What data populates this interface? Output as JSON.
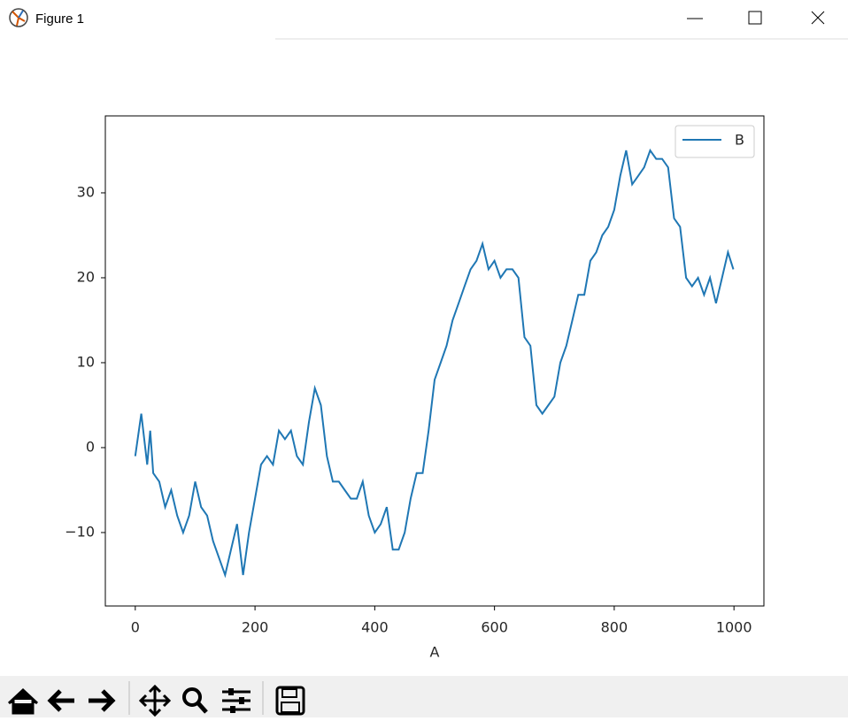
{
  "window": {
    "title": "Figure 1"
  },
  "chart_data": {
    "type": "line",
    "x_label": "A",
    "x": [
      0,
      10,
      20,
      25,
      30,
      40,
      50,
      60,
      70,
      80,
      90,
      100,
      110,
      120,
      130,
      140,
      150,
      160,
      170,
      180,
      190,
      200,
      210,
      220,
      230,
      240,
      250,
      260,
      270,
      280,
      290,
      300,
      310,
      320,
      330,
      340,
      350,
      360,
      370,
      380,
      390,
      400,
      410,
      420,
      430,
      440,
      450,
      460,
      470,
      480,
      490,
      500,
      510,
      520,
      530,
      540,
      550,
      560,
      570,
      580,
      590,
      600,
      610,
      620,
      630,
      640,
      650,
      660,
      670,
      680,
      690,
      700,
      710,
      720,
      730,
      740,
      750,
      760,
      770,
      780,
      790,
      800,
      810,
      820,
      830,
      840,
      850,
      860,
      870,
      880,
      890,
      900,
      910,
      920,
      930,
      940,
      950,
      960,
      970,
      980,
      990,
      999
    ],
    "series": [
      {
        "name": "B",
        "color": "#1f77b4",
        "values": [
          -1,
          4,
          -2,
          2,
          -3,
          -4,
          -7,
          -5,
          -8,
          -10,
          -8,
          -4,
          -7,
          -8,
          -11,
          -13,
          -15,
          -12,
          -9,
          -15,
          -10,
          -6,
          -2,
          -1,
          -2,
          2,
          1,
          2,
          -1,
          -2,
          3,
          7,
          5,
          -1,
          -4,
          -4,
          -5,
          -6,
          -6,
          -4,
          -8,
          -10,
          -9,
          -7,
          -12,
          -12,
          -10,
          -6,
          -3,
          -3,
          2,
          8,
          10,
          12,
          15,
          17,
          19,
          21,
          22,
          24,
          21,
          22,
          20,
          21,
          21,
          20,
          13,
          12,
          5,
          4,
          5,
          6,
          10,
          12,
          15,
          18,
          18,
          22,
          23,
          25,
          26,
          28,
          32,
          35,
          31,
          32,
          33,
          35,
          34,
          34,
          33,
          27,
          26,
          20,
          19,
          20,
          18,
          20,
          17,
          20,
          23,
          21
        ]
      }
    ],
    "xlim": [
      -50,
      1050
    ],
    "ylim": [
      -18.65,
      39.06
    ],
    "xticks": [
      0,
      200,
      400,
      600,
      800,
      1000
    ],
    "yticks": [
      {
        "value": -10,
        "label": "−10"
      },
      0,
      10,
      20,
      30
    ],
    "legend": "upper right"
  }
}
